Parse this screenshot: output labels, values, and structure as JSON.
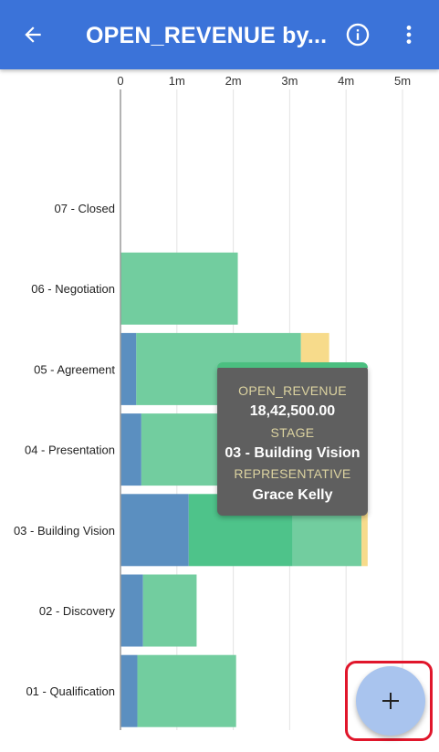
{
  "app_bar": {
    "title": "OPEN_REVENUE by...",
    "back_icon": "arrow-left-icon",
    "info_icon": "info-icon",
    "more_icon": "more-vertical-icon"
  },
  "chart_data": {
    "type": "bar",
    "orientation": "horizontal",
    "stacked": true,
    "categories": [
      "07 - Closed",
      "06 - Negotiation",
      "05 - Agreement",
      "04 - Presentation",
      "03 - Building Vision",
      "02 - Discovery",
      "01 - Qualification"
    ],
    "x_ticks": [
      {
        "value": 0,
        "label": "0"
      },
      {
        "value": 1000000,
        "label": "1m"
      },
      {
        "value": 2000000,
        "label": "2m"
      },
      {
        "value": 3000000,
        "label": "3m"
      },
      {
        "value": 4000000,
        "label": "4m"
      },
      {
        "value": 5000000,
        "label": "5m"
      }
    ],
    "xlim": [
      0,
      5400000
    ],
    "grid": true,
    "series": [
      {
        "color": "#5b8fc0",
        "values": [
          0,
          0,
          280000,
          370000,
          1210000,
          400000,
          300000
        ]
      },
      {
        "color": "#4ec38a",
        "values": [
          0,
          0,
          0,
          0,
          1842500,
          0,
          0
        ]
      },
      {
        "color": "#72cd9f",
        "values": [
          0,
          2080000,
          2920000,
          1700000,
          1220000,
          950000,
          1750000
        ]
      },
      {
        "color": "#f7db8b",
        "values": [
          0,
          0,
          500000,
          0,
          110000,
          0,
          0
        ]
      }
    ]
  },
  "tooltip": {
    "label_1": "OPEN_REVENUE",
    "value_1": "18,42,500.00",
    "label_2": "STAGE",
    "value_2": "03 - Building Vision",
    "label_3": "REPRESENTATIVE",
    "value_3": "Grace Kelly"
  },
  "fab": {
    "icon": "plus-icon"
  }
}
